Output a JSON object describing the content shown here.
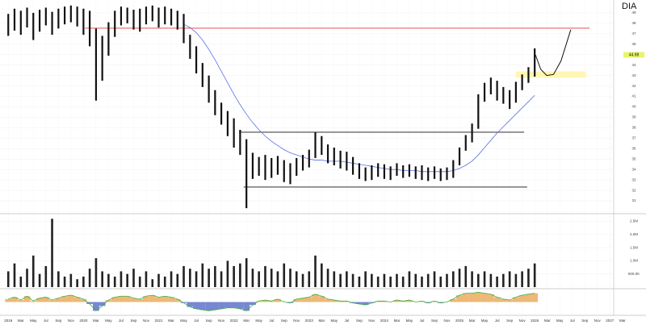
{
  "chart_data": {
    "type": "ohlc",
    "title": "DIA",
    "grid": true,
    "x": [
      2019,
      2019.083,
      2019.167,
      2019.25,
      2019.333,
      2019.417,
      2019.5,
      2019.583,
      2019.667,
      2019.75,
      2019.833,
      2019.917,
      2020,
      2020.083,
      2020.167,
      2020.25,
      2020.333,
      2020.417,
      2020.5,
      2020.583,
      2020.667,
      2020.75,
      2020.833,
      2020.917,
      2021,
      2021.083,
      2021.167,
      2021.25,
      2021.333,
      2021.417,
      2021.5,
      2021.583,
      2021.667,
      2021.75,
      2021.833,
      2021.917,
      2022,
      2022.083,
      2022.167,
      2022.25,
      2022.333,
      2022.417,
      2022.5,
      2022.583,
      2022.667,
      2022.75,
      2022.833,
      2022.917,
      2023,
      2023.083,
      2023.167,
      2023.25,
      2023.333,
      2023.417,
      2023.5,
      2023.583,
      2023.667,
      2023.75,
      2023.833,
      2023.917,
      2024,
      2024.083,
      2024.167,
      2024.25,
      2024.333,
      2024.417,
      2024.5,
      2024.583,
      2024.667,
      2024.75,
      2024.833,
      2024.917,
      2025,
      2025.083,
      2025.167,
      2025.25,
      2025.333,
      2025.417,
      2025.5,
      2025.583,
      2025.667,
      2025.75,
      2025.833,
      2025.917,
      2026
    ],
    "high": [
      48.9,
      49.4,
      49.2,
      49.5,
      49.0,
      49.3,
      49.5,
      49.1,
      49.4,
      49.6,
      49.7,
      49.6,
      49.4,
      49.2,
      47.5,
      46.8,
      48.1,
      49.2,
      49.6,
      49.5,
      49.3,
      49.4,
      49.6,
      49.7,
      49.5,
      49.6,
      49.4,
      49.2,
      48.9,
      46.9,
      45.8,
      44.2,
      43.0,
      41.6,
      40.4,
      39.6,
      38.9,
      37.8,
      36.9,
      35.6,
      35.2,
      35.4,
      35.1,
      35.3,
      34.9,
      34.6,
      35.1,
      35.4,
      35.9,
      37.6,
      37.2,
      36.4,
      36.1,
      35.8,
      35.7,
      35.2,
      34.6,
      34.2,
      34.4,
      34.6,
      34.5,
      34.3,
      34.6,
      34.4,
      34.5,
      34.3,
      34.4,
      34.2,
      34.3,
      34.1,
      34.2,
      34.9,
      36.1,
      37.3,
      38.4,
      41.2,
      42.3,
      42.8,
      42.5,
      41.9,
      41.6,
      42.4,
      43.1,
      43.8,
      45.6
    ],
    "low": [
      46.8,
      47.3,
      46.9,
      47.6,
      46.4,
      47.2,
      47.8,
      46.9,
      47.5,
      47.9,
      48.1,
      47.7,
      46.9,
      45.8,
      40.6,
      42.5,
      44.9,
      46.7,
      47.8,
      48.0,
      47.4,
      47.2,
      47.9,
      48.2,
      47.6,
      47.9,
      47.8,
      47.4,
      46.1,
      44.6,
      43.2,
      41.9,
      40.4,
      39.2,
      38.3,
      37.2,
      36.1,
      35.4,
      30.3,
      33.1,
      33.4,
      33.0,
      33.2,
      33.5,
      32.8,
      32.6,
      33.4,
      33.9,
      34.2,
      35.1,
      35.4,
      34.6,
      34.4,
      34.1,
      33.9,
      33.5,
      33.1,
      32.9,
      33.0,
      33.3,
      33.1,
      33.0,
      33.4,
      33.2,
      33.3,
      33.1,
      33.0,
      32.9,
      33.1,
      32.9,
      33.0,
      33.2,
      34.4,
      35.8,
      36.6,
      37.9,
      40.5,
      41.2,
      40.6,
      40.3,
      39.8,
      40.4,
      41.6,
      42.3,
      42.9
    ],
    "color": "#111111",
    "xlim": [
      2018.89,
      2027.48
    ],
    "xticks": [
      2019,
      {
        "value": 2019.167,
        "label": "Mar"
      },
      {
        "value": 2019.333,
        "label": "May"
      },
      {
        "value": 2019.5,
        "label": "Jul"
      },
      {
        "value": 2019.667,
        "label": "Sep"
      },
      {
        "value": 2019.833,
        "label": "Nov"
      },
      2020,
      {
        "value": 2020.167,
        "label": "Mar"
      },
      {
        "value": 2020.333,
        "label": "May"
      },
      {
        "value": 2020.5,
        "label": "Jul"
      },
      {
        "value": 2020.667,
        "label": "Sep"
      },
      {
        "value": 2020.833,
        "label": "Nov"
      },
      2021,
      {
        "value": 2021.167,
        "label": "Mar"
      },
      {
        "value": 2021.333,
        "label": "May"
      },
      {
        "value": 2021.5,
        "label": "Jul"
      },
      {
        "value": 2021.667,
        "label": "Sep"
      },
      {
        "value": 2021.833,
        "label": "Nov"
      },
      2022,
      {
        "value": 2022.167,
        "label": "Mar"
      },
      {
        "value": 2022.333,
        "label": "May"
      },
      {
        "value": 2022.5,
        "label": "Jul"
      },
      {
        "value": 2022.667,
        "label": "Sep"
      },
      {
        "value": 2022.833,
        "label": "Nov"
      },
      2023,
      {
        "value": 2023.167,
        "label": "Mar"
      },
      {
        "value": 2023.333,
        "label": "May"
      },
      {
        "value": 2023.5,
        "label": "Jul"
      },
      {
        "value": 2023.667,
        "label": "Sep"
      },
      {
        "value": 2023.833,
        "label": "Nov"
      },
      2024,
      {
        "value": 2024.167,
        "label": "Mar"
      },
      {
        "value": 2024.333,
        "label": "May"
      },
      {
        "value": 2024.5,
        "label": "Jul"
      },
      {
        "value": 2024.667,
        "label": "Sep"
      },
      {
        "value": 2024.833,
        "label": "Nov"
      },
      2025,
      {
        "value": 2025.167,
        "label": "Mar"
      },
      {
        "value": 2025.333,
        "label": "May"
      },
      {
        "value": 2025.5,
        "label": "Jul"
      },
      {
        "value": 2025.667,
        "label": "Sep"
      },
      {
        "value": 2025.833,
        "label": "Nov"
      },
      2026,
      {
        "value": 2026.167,
        "label": "Mar"
      },
      {
        "value": 2026.333,
        "label": "May"
      },
      {
        "value": 2026.5,
        "label": "Jul"
      },
      {
        "value": 2026.667,
        "label": "Sep"
      },
      {
        "value": 2026.833,
        "label": "Nov"
      },
      2027,
      {
        "value": 2027.167,
        "label": "Mar"
      }
    ],
    "ylim": [
      30,
      50
    ],
    "yticks": [
      31,
      32,
      33,
      34,
      35,
      36,
      37,
      38,
      39,
      40,
      41,
      42,
      43,
      44,
      45,
      46,
      47,
      48,
      49
    ],
    "last_price": 44.98,
    "ma": {
      "color": "#5b6fe6",
      "values": [
        null,
        null,
        null,
        null,
        null,
        null,
        null,
        null,
        null,
        null,
        null,
        null,
        null,
        null,
        null,
        null,
        null,
        null,
        null,
        null,
        null,
        null,
        null,
        null,
        null,
        null,
        null,
        null,
        47.9,
        47.6,
        47.1,
        46.4,
        45.5,
        44.5,
        43.4,
        42.3,
        41.2,
        40.2,
        39.3,
        38.5,
        37.8,
        37.2,
        36.7,
        36.3,
        35.9,
        35.6,
        35.4,
        35.2,
        35.0,
        34.9,
        34.9,
        34.8,
        34.8,
        34.8,
        34.7,
        34.6,
        34.5,
        34.4,
        34.3,
        34.2,
        34.1,
        34.0,
        34.0,
        33.9,
        33.9,
        33.9,
        33.8,
        33.8,
        33.8,
        33.8,
        33.8,
        33.9,
        34.1,
        34.4,
        34.8,
        35.4,
        36.1,
        36.8,
        37.5,
        38.1,
        38.7,
        39.3,
        39.9,
        40.5,
        41.1
      ]
    },
    "levels": [
      {
        "value": 47.53,
        "color": "#e53935",
        "x": [
          2020.02,
          2026.73
        ]
      },
      {
        "value": 37.57,
        "color": "#111111",
        "x": [
          2022.07,
          2025.86
        ]
      },
      {
        "value": 32.32,
        "color": "#111111",
        "x": [
          2022.13,
          2025.9
        ]
      }
    ],
    "zone": {
      "x": [
        2025.75,
        2026.68
      ],
      "y": [
        42.8,
        43.4
      ],
      "color": "#fff6b3"
    },
    "projection": {
      "color": "#111111",
      "x": [
        2026.01,
        2026.08,
        2026.16,
        2026.25,
        2026.35,
        2026.48
      ],
      "values": [
        44.98,
        43.6,
        43.0,
        43.1,
        44.4,
        47.4
      ]
    },
    "volume": {
      "color": "#222222",
      "values": [
        0.6,
        0.9,
        0.4,
        0.7,
        1.2,
        0.5,
        0.8,
        2.6,
        0.6,
        0.4,
        0.5,
        0.3,
        0.4,
        0.7,
        1.1,
        0.6,
        0.5,
        0.4,
        0.6,
        0.5,
        0.7,
        0.4,
        0.6,
        0.3,
        0.5,
        0.4,
        0.6,
        0.5,
        0.8,
        0.7,
        0.6,
        0.9,
        0.7,
        0.8,
        0.6,
        1.0,
        0.8,
        0.9,
        1.1,
        0.7,
        0.6,
        0.8,
        0.7,
        0.6,
        0.9,
        0.7,
        0.6,
        0.5,
        0.6,
        1.2,
        0.9,
        0.7,
        0.6,
        0.5,
        0.6,
        0.5,
        0.4,
        0.6,
        0.5,
        0.4,
        0.5,
        0.4,
        0.5,
        0.4,
        0.6,
        0.5,
        0.4,
        0.5,
        0.6,
        0.4,
        0.5,
        0.6,
        0.7,
        0.8,
        0.6,
        0.5,
        0.6,
        0.5,
        0.4,
        0.5,
        0.6,
        0.5,
        0.6,
        0.7,
        0.9
      ],
      "ylim": [
        0,
        2.7
      ],
      "yticks": [
        {
          "value": 0.5,
          "label": "500.0K"
        },
        {
          "value": 1,
          "label": "1.0M"
        },
        {
          "value": 1.5,
          "label": "1.5M"
        },
        {
          "value": 2,
          "label": "2.0M"
        },
        {
          "value": 2.5,
          "label": "2.5M"
        }
      ]
    },
    "indicator": {
      "color": "#e8a04a",
      "line_color": "#3cb043",
      "values": [
        0.3,
        0.5,
        0.2,
        0.6,
        0.1,
        0.4,
        0.5,
        0.2,
        0.4,
        0.6,
        0.7,
        0.5,
        0.3,
        -0.2,
        -0.9,
        -0.4,
        0.2,
        0.5,
        0.6,
        0.6,
        0.4,
        0.3,
        0.6,
        0.7,
        0.5,
        0.6,
        0.5,
        0.3,
        -0.1,
        -0.5,
        -0.7,
        -0.8,
        -0.9,
        -0.8,
        -0.7,
        -0.6,
        -0.6,
        -0.7,
        -0.9,
        -0.3,
        0.1,
        0.2,
        0.1,
        0.3,
        0.0,
        -0.1,
        0.3,
        0.4,
        0.5,
        0.8,
        0.6,
        0.3,
        0.2,
        0.1,
        0.1,
        -0.1,
        -0.2,
        -0.3,
        -0.1,
        0.1,
        0.1,
        0.0,
        0.2,
        0.1,
        0.2,
        0.0,
        0.1,
        -0.1,
        0.1,
        -0.1,
        0.0,
        0.3,
        0.7,
        0.9,
        0.9,
        1.0,
        0.9,
        0.8,
        0.5,
        0.3,
        0.2,
        0.5,
        0.7,
        0.8,
        0.9
      ],
      "ylim": [
        -1.2,
        1.2
      ]
    }
  }
}
